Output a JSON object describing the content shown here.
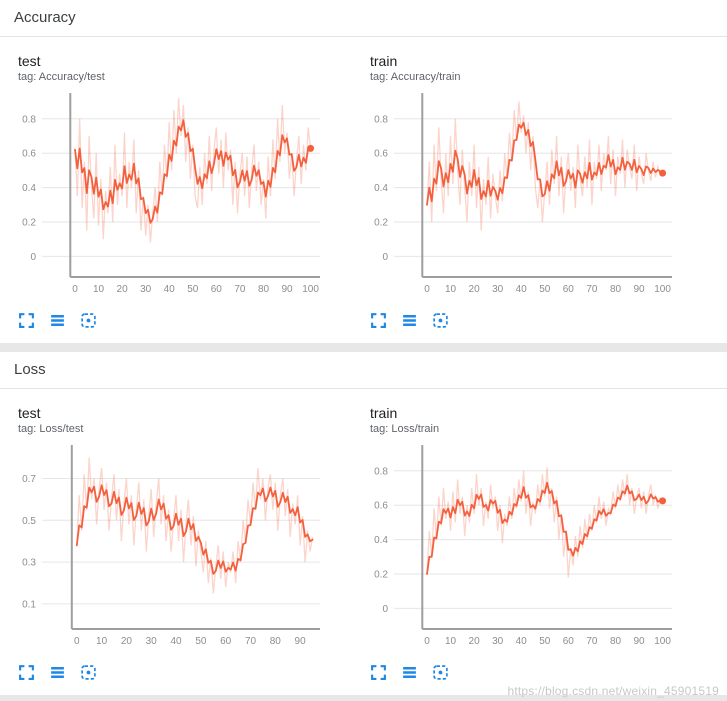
{
  "page": {
    "watermark": "https://blog.csdn.net/weixin_45901519"
  },
  "colors": {
    "line": "#f4603d",
    "raw_opacity": 0.27,
    "icon": "#1e88e5",
    "grid": "#e6e6e6",
    "axis": "#9e9e9e",
    "tick": "#8d8d8d",
    "header_text": "#3c4043",
    "tag_text": "#5f6368",
    "background": "#e7e7e7",
    "watermark": "#c8c8c8"
  },
  "smoothing": 0.6,
  "icons": {
    "fullscreen": "fullscreen-icon",
    "runs": "runs-list-icon",
    "fit": "fit-domain-icon"
  },
  "sections": [
    {
      "title": "Accuracy"
    },
    {
      "title": "Loss"
    }
  ],
  "chart_data": [
    {
      "type": "line",
      "title": "test",
      "tag": "tag: Accuracy/test",
      "x_start": 0,
      "x_step": 1,
      "xlim": [
        -14,
        104
      ],
      "ylim": [
        -0.12,
        0.95
      ],
      "x_ticks": [
        0,
        10,
        20,
        30,
        40,
        50,
        60,
        70,
        80,
        90,
        100
      ],
      "y_ticks": [
        0,
        0.2,
        0.4,
        0.6,
        0.8
      ],
      "grid": "horizontal",
      "end_dot": true,
      "values": [
        0.62,
        0.35,
        0.8,
        0.28,
        0.55,
        0.15,
        0.7,
        0.4,
        0.22,
        0.6,
        0.18,
        0.45,
        0.1,
        0.38,
        0.25,
        0.52,
        0.2,
        0.65,
        0.3,
        0.48,
        0.35,
        0.72,
        0.28,
        0.55,
        0.4,
        0.68,
        0.25,
        0.5,
        0.15,
        0.35,
        0.12,
        0.3,
        0.08,
        0.25,
        0.4,
        0.2,
        0.55,
        0.35,
        0.65,
        0.45,
        0.78,
        0.5,
        0.85,
        0.6,
        0.92,
        0.7,
        0.88,
        0.55,
        0.75,
        0.45,
        0.65,
        0.35,
        0.28,
        0.52,
        0.3,
        0.6,
        0.42,
        0.7,
        0.38,
        0.62,
        0.75,
        0.48,
        0.68,
        0.4,
        0.72,
        0.5,
        0.62,
        0.3,
        0.55,
        0.25,
        0.48,
        0.6,
        0.35,
        0.58,
        0.28,
        0.5,
        0.65,
        0.38,
        0.55,
        0.3,
        0.45,
        0.22,
        0.58,
        0.35,
        0.68,
        0.45,
        0.8,
        0.55,
        0.88,
        0.6,
        0.72,
        0.45,
        0.6,
        0.35,
        0.55,
        0.7,
        0.42,
        0.65,
        0.5,
        0.75,
        0.63
      ]
    },
    {
      "type": "line",
      "title": "train",
      "tag": "tag: Accuracy/train",
      "x_start": 0,
      "x_step": 1,
      "xlim": [
        -14,
        104
      ],
      "ylim": [
        -0.12,
        0.95
      ],
      "x_ticks": [
        0,
        10,
        20,
        30,
        40,
        50,
        60,
        70,
        80,
        90,
        100
      ],
      "y_ticks": [
        0,
        0.2,
        0.4,
        0.6,
        0.8
      ],
      "grid": "horizontal",
      "end_dot": true,
      "values": [
        0.3,
        0.55,
        0.2,
        0.65,
        0.38,
        0.75,
        0.45,
        0.25,
        0.6,
        0.35,
        0.7,
        0.42,
        0.8,
        0.5,
        0.3,
        0.62,
        0.4,
        0.2,
        0.55,
        0.35,
        0.65,
        0.28,
        0.52,
        0.15,
        0.45,
        0.3,
        0.58,
        0.22,
        0.48,
        0.35,
        0.25,
        0.5,
        0.32,
        0.6,
        0.45,
        0.72,
        0.55,
        0.85,
        0.68,
        0.9,
        0.72,
        0.82,
        0.6,
        0.78,
        0.5,
        0.7,
        0.4,
        0.28,
        0.45,
        0.2,
        0.38,
        0.55,
        0.3,
        0.62,
        0.42,
        0.7,
        0.35,
        0.58,
        0.25,
        0.48,
        0.6,
        0.38,
        0.52,
        0.28,
        0.65,
        0.45,
        0.35,
        0.58,
        0.4,
        0.68,
        0.3,
        0.55,
        0.45,
        0.65,
        0.38,
        0.6,
        0.5,
        0.7,
        0.42,
        0.62,
        0.35,
        0.58,
        0.48,
        0.68,
        0.4,
        0.62,
        0.52,
        0.45,
        0.65,
        0.38,
        0.58,
        0.48,
        0.42,
        0.6,
        0.5,
        0.44,
        0.55,
        0.46,
        0.52,
        0.48,
        0.47
      ]
    },
    {
      "type": "line",
      "title": "test",
      "tag": "tag: Loss/test",
      "x_start": 0,
      "x_step": 1,
      "xlim": [
        -14,
        98
      ],
      "ylim": [
        -0.02,
        0.86
      ],
      "x_ticks": [
        0,
        10,
        20,
        30,
        40,
        50,
        60,
        70,
        80,
        90
      ],
      "y_ticks": [
        0.1,
        0.3,
        0.5,
        0.7
      ],
      "grid": "horizontal",
      "end_dot": false,
      "values": [
        0.38,
        0.62,
        0.45,
        0.72,
        0.55,
        0.8,
        0.6,
        0.7,
        0.48,
        0.65,
        0.75,
        0.55,
        0.68,
        0.45,
        0.6,
        0.72,
        0.5,
        0.65,
        0.4,
        0.58,
        0.7,
        0.48,
        0.62,
        0.38,
        0.55,
        0.68,
        0.45,
        0.6,
        0.35,
        0.52,
        0.65,
        0.42,
        0.58,
        0.7,
        0.48,
        0.62,
        0.4,
        0.55,
        0.35,
        0.5,
        0.62,
        0.4,
        0.55,
        0.3,
        0.48,
        0.6,
        0.38,
        0.52,
        0.28,
        0.45,
        0.35,
        0.25,
        0.4,
        0.2,
        0.32,
        0.15,
        0.28,
        0.38,
        0.22,
        0.35,
        0.18,
        0.3,
        0.25,
        0.35,
        0.2,
        0.4,
        0.3,
        0.5,
        0.4,
        0.6,
        0.48,
        0.68,
        0.55,
        0.75,
        0.6,
        0.7,
        0.5,
        0.65,
        0.72,
        0.55,
        0.68,
        0.45,
        0.62,
        0.7,
        0.52,
        0.65,
        0.42,
        0.58,
        0.48,
        0.62,
        0.38,
        0.52,
        0.3,
        0.45,
        0.35,
        0.42
      ]
    },
    {
      "type": "line",
      "title": "train",
      "tag": "tag: Loss/train",
      "x_start": 0,
      "x_step": 1,
      "xlim": [
        -14,
        104
      ],
      "ylim": [
        -0.12,
        0.95
      ],
      "x_ticks": [
        0,
        10,
        20,
        30,
        40,
        50,
        60,
        70,
        80,
        90,
        100
      ],
      "y_ticks": [
        0,
        0.2,
        0.4,
        0.6,
        0.8
      ],
      "grid": "horizontal",
      "end_dot": true,
      "values": [
        0.2,
        0.45,
        0.3,
        0.58,
        0.4,
        0.65,
        0.48,
        0.7,
        0.52,
        0.62,
        0.45,
        0.68,
        0.5,
        0.75,
        0.55,
        0.65,
        0.42,
        0.6,
        0.5,
        0.7,
        0.55,
        0.78,
        0.6,
        0.7,
        0.48,
        0.62,
        0.52,
        0.72,
        0.58,
        0.65,
        0.45,
        0.6,
        0.38,
        0.55,
        0.48,
        0.65,
        0.52,
        0.7,
        0.58,
        0.75,
        0.62,
        0.8,
        0.55,
        0.68,
        0.48,
        0.62,
        0.55,
        0.72,
        0.6,
        0.78,
        0.65,
        0.82,
        0.58,
        0.7,
        0.5,
        0.65,
        0.4,
        0.55,
        0.3,
        0.45,
        0.18,
        0.35,
        0.25,
        0.42,
        0.3,
        0.48,
        0.35,
        0.52,
        0.4,
        0.55,
        0.45,
        0.6,
        0.5,
        0.65,
        0.52,
        0.62,
        0.48,
        0.58,
        0.55,
        0.68,
        0.58,
        0.72,
        0.62,
        0.75,
        0.65,
        0.78,
        0.6,
        0.7,
        0.55,
        0.65,
        0.7,
        0.58,
        0.68,
        0.55,
        0.65,
        0.72,
        0.6,
        0.66,
        0.58,
        0.64,
        0.62
      ]
    }
  ]
}
